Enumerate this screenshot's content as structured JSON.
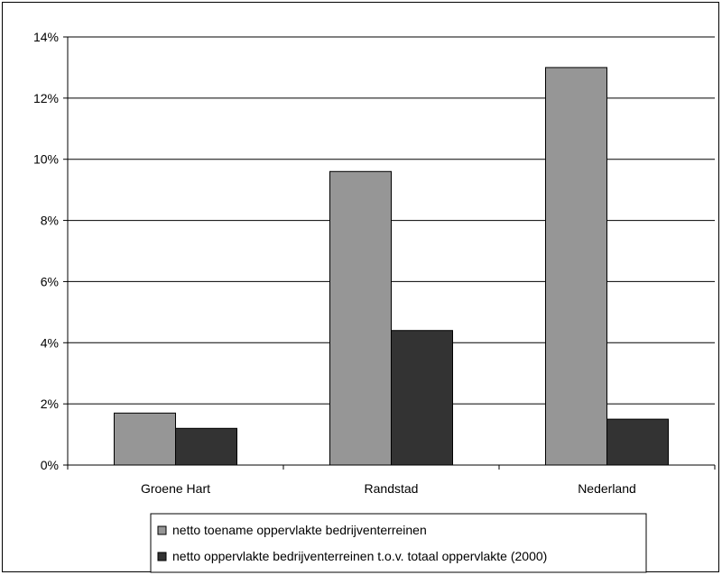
{
  "chart_data": {
    "type": "bar",
    "title": "",
    "xlabel": "",
    "ylabel": "",
    "categories": [
      "Groene Hart",
      "Randstad",
      "Nederland"
    ],
    "ylim": [
      0,
      14
    ],
    "yticks": [
      0,
      2,
      4,
      6,
      8,
      10,
      12,
      14
    ],
    "ytick_labels": [
      "0%",
      "2%",
      "4%",
      "6%",
      "8%",
      "10%",
      "12%",
      "14%"
    ],
    "grid": "horizontal major gridlines",
    "legend_placement": "bottom",
    "series": [
      {
        "name": "netto toename oppervlakte bedrijventerreinen",
        "color": "#969696",
        "values": [
          1.7,
          9.6,
          13.0
        ]
      },
      {
        "name": "netto oppervlakte bedrijventerreinen t.o.v. totaal oppervlakte (2000)",
        "color": "#333333",
        "values": [
          1.2,
          4.4,
          1.5
        ]
      }
    ]
  }
}
